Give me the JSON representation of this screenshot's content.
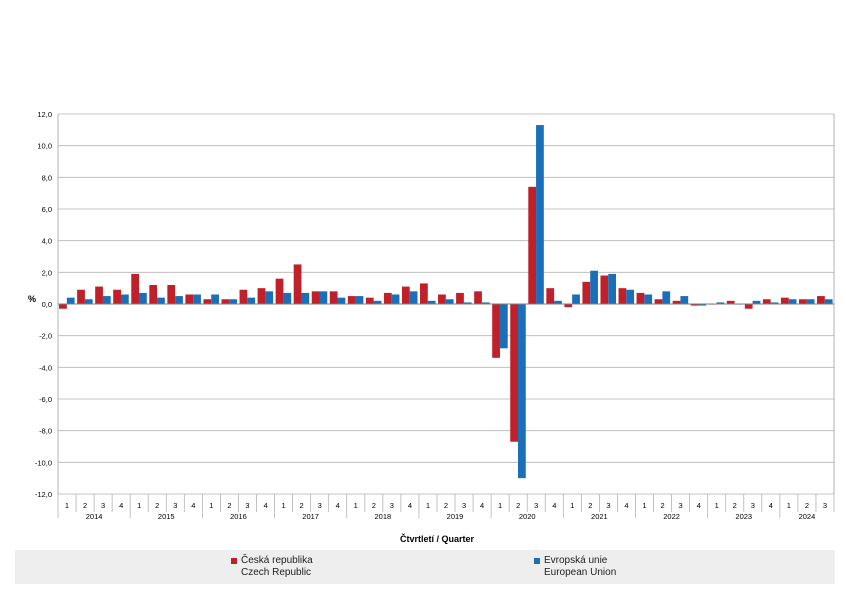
{
  "chart_data": {
    "type": "bar",
    "ylabel": "%",
    "xlabel": "Čtvrtletí / Quarter",
    "ylim": [
      -12,
      12
    ],
    "yticks": [
      "-12,0",
      "-10,0",
      "-8,0",
      "-6,0",
      "-4,0",
      "-2,0",
      "0,0",
      "2,0",
      "4,0",
      "6,0",
      "8,0",
      "10,0",
      "12,0"
    ],
    "grid": true,
    "legend_position": "bottom",
    "quarter_labels": [
      "1",
      "2",
      "3",
      "4",
      "1",
      "2",
      "3",
      "4",
      "1",
      "2",
      "3",
      "4",
      "1",
      "2",
      "3",
      "4",
      "1",
      "2",
      "3",
      "4",
      "1",
      "2",
      "3",
      "4",
      "1",
      "2",
      "3",
      "4",
      "1",
      "2",
      "3",
      "4",
      "1",
      "2",
      "3",
      "4",
      "1",
      "2",
      "3",
      "4",
      "1",
      "2",
      "3"
    ],
    "years": [
      "2014",
      "2015",
      "2016",
      "2017",
      "2018",
      "2019",
      "2020",
      "2021",
      "2022",
      "2023",
      "2024"
    ],
    "series": [
      {
        "name": "Česká republika",
        "name_en": "Czech Republic",
        "color": "#c0202a",
        "values": [
          -0.3,
          0.9,
          1.1,
          0.9,
          1.9,
          1.2,
          1.2,
          0.6,
          0.3,
          0.3,
          0.9,
          1.0,
          1.6,
          2.5,
          0.8,
          0.8,
          0.5,
          0.4,
          0.7,
          1.1,
          1.3,
          0.6,
          0.7,
          0.8,
          -3.4,
          -8.7,
          7.4,
          1.0,
          -0.2,
          1.4,
          1.8,
          1.0,
          0.7,
          0.3,
          0.2,
          -0.1,
          0.0,
          0.2,
          -0.3,
          0.3,
          0.4,
          0.3,
          0.5
        ]
      },
      {
        "name": "Evropská unie",
        "name_en": "European Union",
        "color": "#1a6fb8",
        "values": [
          0.4,
          0.3,
          0.5,
          0.6,
          0.7,
          0.4,
          0.5,
          0.6,
          0.6,
          0.3,
          0.4,
          0.8,
          0.7,
          0.7,
          0.8,
          0.4,
          0.5,
          0.2,
          0.6,
          0.8,
          0.2,
          0.3,
          0.1,
          0.1,
          -2.8,
          -11.0,
          11.3,
          0.2,
          0.6,
          2.1,
          1.9,
          0.9,
          0.6,
          0.8,
          0.5,
          -0.1,
          0.1,
          0.0,
          0.2,
          0.1,
          0.3,
          0.3,
          0.3
        ]
      }
    ]
  }
}
